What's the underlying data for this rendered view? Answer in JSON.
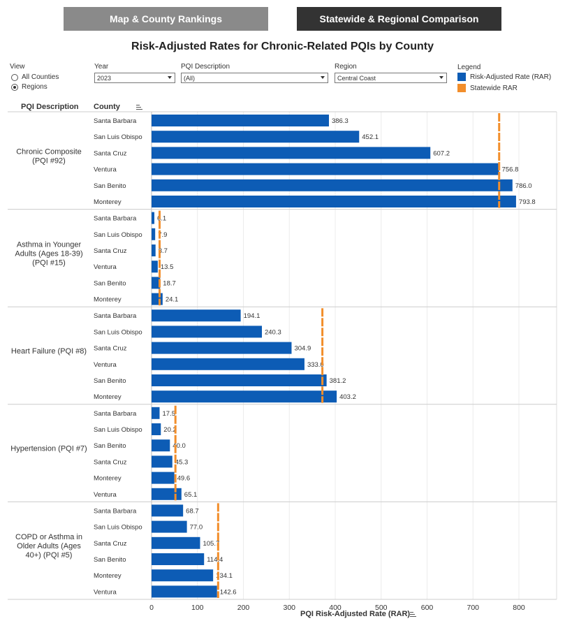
{
  "tabs": [
    {
      "label": "Map & County Rankings"
    },
    {
      "label": "Statewide & Regional Comparison"
    }
  ],
  "title": "Risk-Adjusted Rates for Chronic-Related PQIs by County",
  "filters": {
    "view_label": "View",
    "view_options": [
      "All Counties",
      "Regions"
    ],
    "year_label": "Year",
    "year_value": "2023",
    "pqi_label": "PQI Description",
    "pqi_value": "(All)",
    "region_label": "Region",
    "region_value": "Central Coast"
  },
  "legend": {
    "title": "Legend",
    "items": [
      {
        "label": "Risk-Adjusted Rate (RAR)",
        "color": "#0d5cb5"
      },
      {
        "label": "Statewide RAR",
        "color": "#f28e2b"
      }
    ]
  },
  "headers": {
    "pqi": "PQI Description",
    "county": "County"
  },
  "chart_data": {
    "type": "bar",
    "orientation": "horizontal",
    "xlabel": "PQI Risk-Adjusted Rate (RAR)",
    "xlim": [
      0,
      880
    ],
    "xticks": [
      0,
      100,
      200,
      300,
      400,
      500,
      600,
      700,
      800
    ],
    "groups": [
      {
        "label": "Chronic Composite\n(PQI #92)",
        "statewide": 757,
        "rows": [
          {
            "county": "Santa Barbara",
            "value": 386.3
          },
          {
            "county": "San Luis Obispo",
            "value": 452.1
          },
          {
            "county": "Santa Cruz",
            "value": 607.2
          },
          {
            "county": "Ventura",
            "value": 756.8
          },
          {
            "county": "San Benito",
            "value": 786.0
          },
          {
            "county": "Monterey",
            "value": 793.8
          }
        ]
      },
      {
        "label": "Asthma in Younger\nAdults (Ages 18-39)\n(PQI #15)",
        "statewide": 17.5,
        "rows": [
          {
            "county": "Santa Barbara",
            "value": 6.1
          },
          {
            "county": "San Luis Obispo",
            "value": 7.9
          },
          {
            "county": "Santa Cruz",
            "value": 8.7
          },
          {
            "county": "Ventura",
            "value": 13.5
          },
          {
            "county": "San Benito",
            "value": 18.7
          },
          {
            "county": "Monterey",
            "value": 24.1
          }
        ]
      },
      {
        "label": "Heart Failure (PQI #8)",
        "statewide": 372,
        "rows": [
          {
            "county": "Santa Barbara",
            "value": 194.1
          },
          {
            "county": "San Luis Obispo",
            "value": 240.3
          },
          {
            "county": "Santa Cruz",
            "value": 304.9
          },
          {
            "county": "Ventura",
            "value": 333.0
          },
          {
            "county": "San Benito",
            "value": 381.2
          },
          {
            "county": "Monterey",
            "value": 403.2
          }
        ]
      },
      {
        "label": "Hypertension (PQI #7)",
        "statewide": 52,
        "rows": [
          {
            "county": "Santa Barbara",
            "value": 17.5
          },
          {
            "county": "San Luis Obispo",
            "value": 20.2
          },
          {
            "county": "San Benito",
            "value": 40.0
          },
          {
            "county": "Santa Cruz",
            "value": 45.3
          },
          {
            "county": "Monterey",
            "value": 49.6
          },
          {
            "county": "Ventura",
            "value": 65.1
          }
        ]
      },
      {
        "label": "COPD or Asthma in\nOlder Adults (Ages\n40+) (PQI #5)",
        "statewide": 145,
        "rows": [
          {
            "county": "Santa Barbara",
            "value": 68.7
          },
          {
            "county": "San Luis Obispo",
            "value": 77.0
          },
          {
            "county": "Santa Cruz",
            "value": 105.7
          },
          {
            "county": "San Benito",
            "value": 114.4
          },
          {
            "county": "Monterey",
            "value": 134.1
          },
          {
            "county": "Ventura",
            "value": 142.6
          }
        ]
      }
    ]
  }
}
